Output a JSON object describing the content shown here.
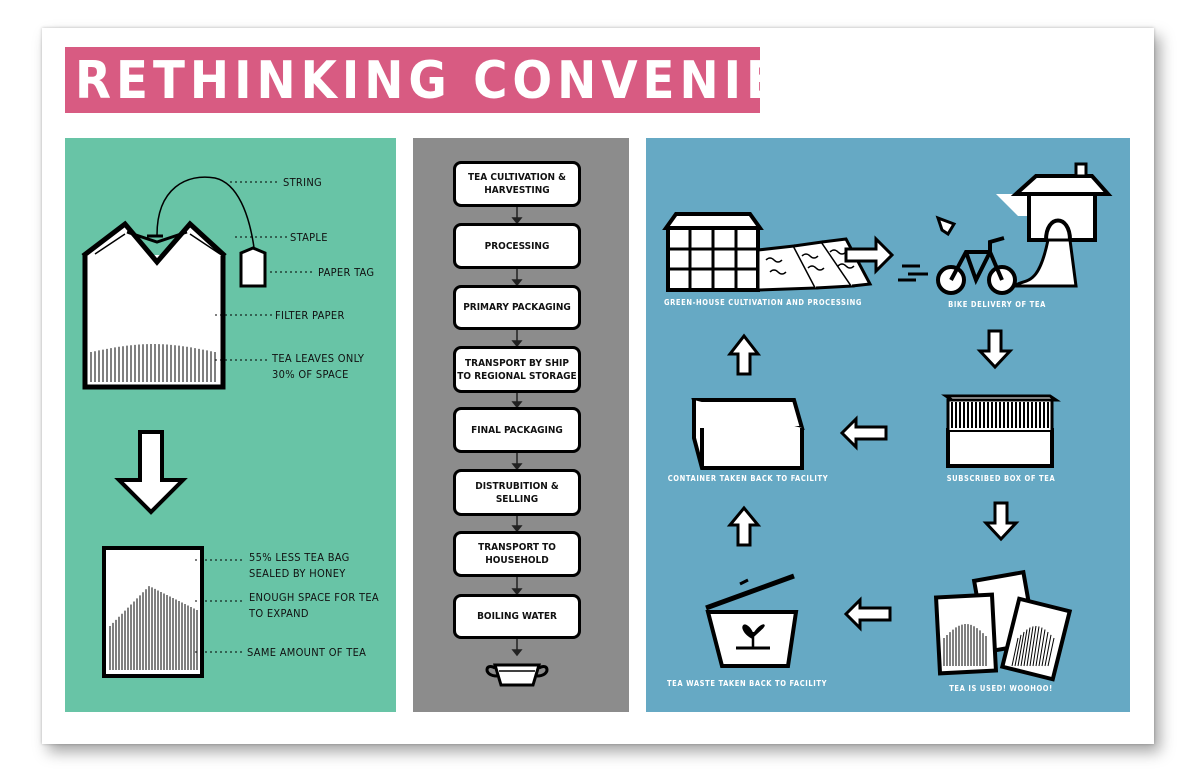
{
  "title": "RETHINKING CONVENIENT TEA",
  "teabag_labels": {
    "string": "STRING",
    "staple": "STAPLE",
    "paper_tag": "PAPER TAG",
    "filter_paper": "FILTER PAPER",
    "tea_leaves_line1": "TEA LEAVES ONLY",
    "tea_leaves_line2": "30% OF SPACE"
  },
  "new_bag_labels": {
    "less_bag_line1": "55% LESS TEA BAG",
    "less_bag_line2": "SEALED BY HONEY",
    "space_line1": "ENOUGH SPACE FOR TEA",
    "space_line2": "TO EXPAND",
    "same_amount": "SAME AMOUNT OF TEA"
  },
  "flow_steps": [
    {
      "line1": "TEA CULTIVATION &",
      "line2": "HARVESTING"
    },
    {
      "line1": "PROCESSING",
      "line2": ""
    },
    {
      "line1": "PRIMARY PACKAGING",
      "line2": ""
    },
    {
      "line1": "TRANSPORT BY SHIP",
      "line2": "TO REGIONAL STORAGE"
    },
    {
      "line1": "FINAL PACKAGING",
      "line2": ""
    },
    {
      "line1": "DISTRUBITION &",
      "line2": "SELLING"
    },
    {
      "line1": "TRANSPORT TO",
      "line2": "HOUSEHOLD"
    },
    {
      "line1": "BOILING WATER",
      "line2": ""
    }
  ],
  "cycle_captions": {
    "greenhouse": "GREEN-HOUSE CULTIVATION AND PROCESSING",
    "bike": "BIKE DELIVERY OF TEA",
    "subscribed": "SUBSCRIBED BOX OF TEA",
    "used": "TEA IS USED! WOOHOO!",
    "waste": "TEA WASTE TAKEN BACK TO FACILITY",
    "container": "CONTAINER TAKEN BACK TO FACILITY"
  },
  "colors": {
    "title_bg": "#d85b82",
    "left_panel": "#68c4a6",
    "middle_panel": "#8c8c8c",
    "right_panel": "#66a9c4"
  }
}
